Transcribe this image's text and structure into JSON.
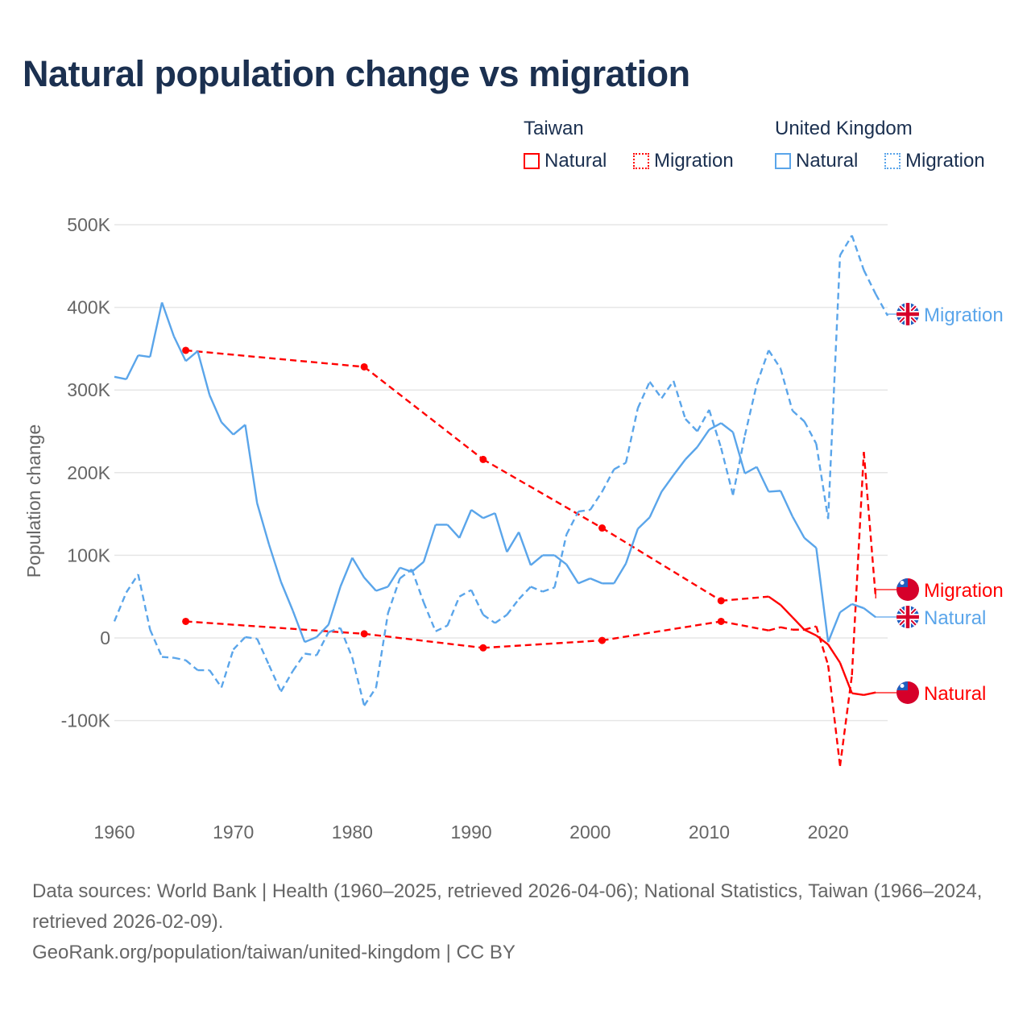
{
  "title": "Natural population change vs migration",
  "legend": {
    "groups": [
      {
        "name": "Taiwan",
        "items": [
          "Natural",
          "Migration"
        ],
        "color": "#ff0000"
      },
      {
        "name": "United Kingdom",
        "items": [
          "Natural",
          "Migration"
        ],
        "color": "#5aa5ea"
      }
    ]
  },
  "footer": {
    "sources": "Data sources: World Bank | Health (1960–2025, retrieved 2026-04-06); National Statistics, Taiwan (1966–2024, retrieved 2026-02-09).",
    "link": "GeoRank.org/population/taiwan/united-kingdom | CC BY"
  },
  "chart_data": {
    "type": "line",
    "title": "Natural population change vs migration",
    "xlabel": "",
    "ylabel": "Population change",
    "xlim": [
      1960,
      2025
    ],
    "ylim": [
      -100000,
      500000
    ],
    "x_ticks": [
      "1960",
      "1970",
      "1980",
      "1990",
      "2000",
      "2010",
      "2020"
    ],
    "y_ticks": [
      {
        "value": 500000,
        "label": "500K"
      },
      {
        "value": 400000,
        "label": "400K"
      },
      {
        "value": 300000,
        "label": "300K"
      },
      {
        "value": 200000,
        "label": "200K"
      },
      {
        "value": 100000,
        "label": "100K"
      },
      {
        "value": 0,
        "label": "0"
      },
      {
        "value": -100000,
        "label": "-100K"
      }
    ],
    "grid": true,
    "legend_position": "top-right",
    "series": [
      {
        "name": "Taiwan Natural",
        "country": "Taiwan",
        "kind": "Natural",
        "label": "Natural",
        "color": "#ff0000",
        "style": "solid",
        "x": [
          1966,
          1981,
          1991,
          2001,
          2011,
          2015,
          2016,
          2017,
          2018,
          2019,
          2020,
          2021,
          2022,
          2023,
          2024
        ],
        "y": [
          348000,
          328000,
          216000,
          133000,
          45000,
          50000,
          40000,
          25000,
          10000,
          3000,
          -8000,
          -30000,
          -67000,
          -69000,
          -66000
        ]
      },
      {
        "name": "Taiwan Migration",
        "country": "Taiwan",
        "kind": "Migration",
        "label": "Migration",
        "color": "#ff0000",
        "style": "dashed",
        "x": [
          1966,
          1981,
          1991,
          2001,
          2011,
          2015,
          2016,
          2017,
          2018,
          2019,
          2020,
          2021,
          2022,
          2023,
          2024
        ],
        "y": [
          20000,
          5000,
          -12000,
          -3000,
          20000,
          9000,
          13000,
          10000,
          10000,
          14000,
          -33000,
          -155000,
          -45000,
          225000,
          48000
        ]
      },
      {
        "name": "United Kingdom Natural",
        "country": "United Kingdom",
        "kind": "Natural",
        "label": "Natural",
        "color": "#5aa5ea",
        "style": "solid",
        "x": [
          1960,
          1961,
          1962,
          1963,
          1964,
          1965,
          1966,
          1967,
          1968,
          1969,
          1970,
          1971,
          1972,
          1973,
          1974,
          1975,
          1976,
          1977,
          1978,
          1979,
          1980,
          1981,
          1982,
          1983,
          1984,
          1985,
          1986,
          1987,
          1988,
          1989,
          1990,
          1991,
          1992,
          1993,
          1994,
          1995,
          1996,
          1997,
          1998,
          1999,
          2000,
          2001,
          2002,
          2003,
          2004,
          2005,
          2006,
          2007,
          2008,
          2009,
          2010,
          2011,
          2012,
          2013,
          2014,
          2015,
          2016,
          2017,
          2018,
          2019,
          2020,
          2021,
          2022,
          2023,
          2024
        ],
        "y": [
          316000,
          313000,
          342000,
          340000,
          406000,
          365000,
          335000,
          347000,
          294000,
          261000,
          246000,
          258000,
          163000,
          113000,
          68000,
          33000,
          -5000,
          1000,
          16000,
          62000,
          97000,
          73000,
          57000,
          62000,
          85000,
          80000,
          92000,
          137000,
          137000,
          121000,
          155000,
          145000,
          151000,
          104000,
          128000,
          88000,
          100000,
          100000,
          89000,
          66000,
          72000,
          66000,
          66000,
          90000,
          132000,
          146000,
          177000,
          197000,
          216000,
          231000,
          252000,
          260000,
          249000,
          199000,
          207000,
          177000,
          178000,
          147000,
          121000,
          109000,
          -5000,
          31000,
          41000,
          36000,
          25000
        ]
      },
      {
        "name": "United Kingdom Migration",
        "country": "United Kingdom",
        "kind": "Migration",
        "label": "Migration",
        "color": "#5aa5ea",
        "style": "dashed",
        "x": [
          1960,
          1961,
          1962,
          1963,
          1964,
          1965,
          1966,
          1967,
          1968,
          1969,
          1970,
          1971,
          1972,
          1973,
          1974,
          1975,
          1976,
          1977,
          1978,
          1979,
          1980,
          1981,
          1982,
          1983,
          1984,
          1985,
          1986,
          1987,
          1988,
          1989,
          1990,
          1991,
          1992,
          1993,
          1994,
          1995,
          1996,
          1997,
          1998,
          1999,
          2000,
          2001,
          2002,
          2003,
          2004,
          2005,
          2006,
          2007,
          2008,
          2009,
          2010,
          2011,
          2012,
          2013,
          2014,
          2015,
          2016,
          2017,
          2018,
          2019,
          2020,
          2021,
          2022,
          2023,
          2024,
          2025
        ],
        "y": [
          20000,
          55000,
          77000,
          10000,
          -23000,
          -24000,
          -27000,
          -39000,
          -39000,
          -60000,
          -14000,
          1000,
          -1000,
          -33000,
          -65000,
          -40000,
          -19000,
          -21000,
          7000,
          12000,
          -24000,
          -82000,
          -60000,
          30000,
          72000,
          83000,
          43000,
          8000,
          15000,
          50000,
          58000,
          28000,
          18000,
          28000,
          47000,
          62000,
          56000,
          61000,
          125000,
          153000,
          155000,
          177000,
          204000,
          212000,
          278000,
          310000,
          290000,
          311000,
          265000,
          250000,
          276000,
          230000,
          173000,
          245000,
          307000,
          348000,
          326000,
          275000,
          262000,
          235000,
          144000,
          463000,
          487000,
          445000,
          416000,
          390000
        ]
      }
    ]
  }
}
